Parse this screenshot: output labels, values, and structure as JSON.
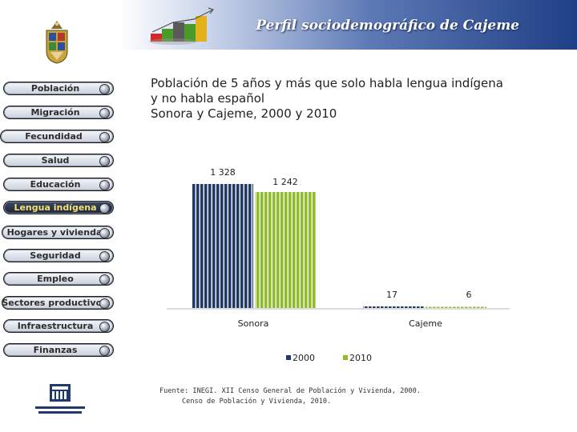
{
  "header": {
    "title": "Perfil sociodemográfico de Cajeme"
  },
  "menu": {
    "active_index": 5,
    "items": [
      {
        "label": "Población"
      },
      {
        "label": "Migración"
      },
      {
        "label": "Fecundidad"
      },
      {
        "label": "Salud"
      },
      {
        "label": "Educación"
      },
      {
        "label": "Lengua indígena"
      },
      {
        "label": "Hogares y vivienda"
      },
      {
        "label": "Seguridad"
      },
      {
        "label": "Empleo"
      },
      {
        "label": "Sectores productivos"
      },
      {
        "label": "Infraestructura"
      },
      {
        "label": "Finanzas"
      }
    ]
  },
  "chart_title": {
    "line1": "Población de 5 años y más que solo habla lengua indígena",
    "line2": "y no habla español",
    "line3": "Sonora y Cajeme, 2000 y 2010"
  },
  "chart_data": {
    "type": "bar",
    "categories": [
      "Sonora",
      "Cajeme"
    ],
    "series": [
      {
        "name": "2000",
        "values": [
          1328,
          17
        ],
        "labels": [
          "1 328",
          "17"
        ],
        "color": "#1f3a6b"
      },
      {
        "name": "2010",
        "values": [
          1242,
          6
        ],
        "labels": [
          "1 242",
          "6"
        ],
        "color": "#8cbf26"
      }
    ],
    "ylim": [
      0,
      1400
    ],
    "legend_position": "bottom",
    "grid": false
  },
  "source": {
    "line1": "Fuente: INEGI. XII Censo General de Población y Vivienda, 2000.",
    "line2": "Censo de Población y Vivienda, 2010."
  },
  "colors": {
    "header_dark": "#1f3f86",
    "active_menu_text": "#f6e26c",
    "series_2000": "#1f3a6b",
    "series_2010": "#8cbf26"
  }
}
